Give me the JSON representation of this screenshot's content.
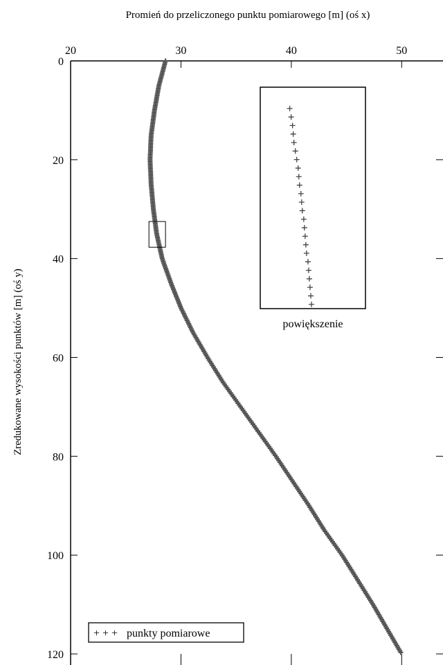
{
  "chart_data": {
    "type": "scatter",
    "xlabel": "Promień do przeliczonego punktu pomiarowego [m] (oś x)",
    "ylabel": "Zredukowane wysokości punktów [m] (oś y)",
    "xlim": [
      20,
      55
    ],
    "ylim": [
      0,
      120
    ],
    "x_axis_position": "top",
    "y_inverted": true,
    "x_ticks": [
      20,
      30,
      40,
      50
    ],
    "y_ticks": [
      0,
      20,
      40,
      60,
      80,
      100,
      120
    ],
    "series": [
      {
        "name": "punkty pomiarowe",
        "marker": "+",
        "color": "#555555",
        "profile": [
          {
            "y": 0,
            "x": 28.6
          },
          {
            "y": 5,
            "x": 28.0
          },
          {
            "y": 10,
            "x": 27.6
          },
          {
            "y": 15,
            "x": 27.3
          },
          {
            "y": 20,
            "x": 27.2
          },
          {
            "y": 25,
            "x": 27.3
          },
          {
            "y": 30,
            "x": 27.5
          },
          {
            "y": 35,
            "x": 27.8
          },
          {
            "y": 40,
            "x": 28.3
          },
          {
            "y": 45,
            "x": 29.1
          },
          {
            "y": 50,
            "x": 30.0
          },
          {
            "y": 55,
            "x": 31.1
          },
          {
            "y": 60,
            "x": 32.4
          },
          {
            "y": 65,
            "x": 33.8
          },
          {
            "y": 70,
            "x": 35.4
          },
          {
            "y": 75,
            "x": 37.0
          },
          {
            "y": 80,
            "x": 38.6
          },
          {
            "y": 85,
            "x": 40.1
          },
          {
            "y": 90,
            "x": 41.6
          },
          {
            "y": 95,
            "x": 43.0
          },
          {
            "y": 100,
            "x": 44.6
          },
          {
            "y": 105,
            "x": 46.0
          },
          {
            "y": 110,
            "x": 47.4
          },
          {
            "y": 115,
            "x": 48.7
          },
          {
            "y": 120,
            "x": 50.0
          }
        ]
      }
    ],
    "inset": {
      "label": "powiększenie",
      "zoom_region": {
        "xlim": [
          27.1,
          28.6
        ],
        "ylim": [
          32.5,
          37.7
        ]
      },
      "points": [
        {
          "y": 33.0,
          "x": 27.52
        },
        {
          "y": 33.2,
          "x": 27.54
        },
        {
          "y": 33.4,
          "x": 27.56
        },
        {
          "y": 33.6,
          "x": 27.57
        },
        {
          "y": 33.8,
          "x": 27.58
        },
        {
          "y": 34.0,
          "x": 27.6
        },
        {
          "y": 34.2,
          "x": 27.62
        },
        {
          "y": 34.4,
          "x": 27.64
        },
        {
          "y": 34.6,
          "x": 27.65
        },
        {
          "y": 34.8,
          "x": 27.66
        },
        {
          "y": 35.0,
          "x": 27.68
        },
        {
          "y": 35.2,
          "x": 27.69
        },
        {
          "y": 35.4,
          "x": 27.7
        },
        {
          "y": 35.6,
          "x": 27.72
        },
        {
          "y": 35.8,
          "x": 27.73
        },
        {
          "y": 36.0,
          "x": 27.74
        },
        {
          "y": 36.2,
          "x": 27.75
        },
        {
          "y": 36.4,
          "x": 27.76
        },
        {
          "y": 36.6,
          "x": 27.78
        },
        {
          "y": 36.8,
          "x": 27.79
        },
        {
          "y": 37.0,
          "x": 27.8
        },
        {
          "y": 37.2,
          "x": 27.81
        },
        {
          "y": 37.4,
          "x": 27.82
        },
        {
          "y": 37.6,
          "x": 27.83
        }
      ]
    },
    "legend": {
      "label": "punkty pomiarowe",
      "marker_text": "+ + +",
      "placement": "bottom-left"
    }
  }
}
